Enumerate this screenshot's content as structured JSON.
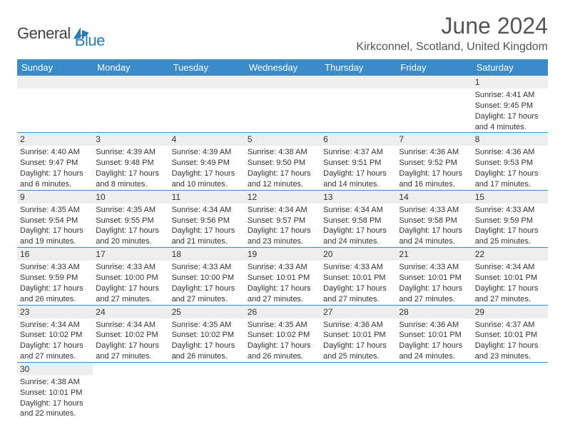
{
  "logo": {
    "text_general": "General",
    "text_blue": "Blue"
  },
  "title": "June 2024",
  "location": "Kirkconnel, Scotland, United Kingdom",
  "colors": {
    "header_bg": "#3b8bc9",
    "header_text": "#ffffff",
    "daynum_bg": "#eeeeee",
    "border": "#3b8bc9",
    "text": "#333333",
    "title_text": "#555555",
    "logo_blue": "#2a7ab8"
  },
  "weekday_labels": [
    "Sunday",
    "Monday",
    "Tuesday",
    "Wednesday",
    "Thursday",
    "Friday",
    "Saturday"
  ],
  "weeks": [
    [
      null,
      null,
      null,
      null,
      null,
      null,
      {
        "n": "1",
        "sr": "4:41 AM",
        "ss": "9:45 PM",
        "dh": "17",
        "dm": "4"
      }
    ],
    [
      {
        "n": "2",
        "sr": "4:40 AM",
        "ss": "9:47 PM",
        "dh": "17",
        "dm": "6"
      },
      {
        "n": "3",
        "sr": "4:39 AM",
        "ss": "9:48 PM",
        "dh": "17",
        "dm": "8"
      },
      {
        "n": "4",
        "sr": "4:39 AM",
        "ss": "9:49 PM",
        "dh": "17",
        "dm": "10"
      },
      {
        "n": "5",
        "sr": "4:38 AM",
        "ss": "9:50 PM",
        "dh": "17",
        "dm": "12"
      },
      {
        "n": "6",
        "sr": "4:37 AM",
        "ss": "9:51 PM",
        "dh": "17",
        "dm": "14"
      },
      {
        "n": "7",
        "sr": "4:36 AM",
        "ss": "9:52 PM",
        "dh": "17",
        "dm": "16"
      },
      {
        "n": "8",
        "sr": "4:36 AM",
        "ss": "9:53 PM",
        "dh": "17",
        "dm": "17"
      }
    ],
    [
      {
        "n": "9",
        "sr": "4:35 AM",
        "ss": "9:54 PM",
        "dh": "17",
        "dm": "19"
      },
      {
        "n": "10",
        "sr": "4:35 AM",
        "ss": "9:55 PM",
        "dh": "17",
        "dm": "20"
      },
      {
        "n": "11",
        "sr": "4:34 AM",
        "ss": "9:56 PM",
        "dh": "17",
        "dm": "21"
      },
      {
        "n": "12",
        "sr": "4:34 AM",
        "ss": "9:57 PM",
        "dh": "17",
        "dm": "23"
      },
      {
        "n": "13",
        "sr": "4:34 AM",
        "ss": "9:58 PM",
        "dh": "17",
        "dm": "24"
      },
      {
        "n": "14",
        "sr": "4:33 AM",
        "ss": "9:58 PM",
        "dh": "17",
        "dm": "24"
      },
      {
        "n": "15",
        "sr": "4:33 AM",
        "ss": "9:59 PM",
        "dh": "17",
        "dm": "25"
      }
    ],
    [
      {
        "n": "16",
        "sr": "4:33 AM",
        "ss": "9:59 PM",
        "dh": "17",
        "dm": "26"
      },
      {
        "n": "17",
        "sr": "4:33 AM",
        "ss": "10:00 PM",
        "dh": "17",
        "dm": "27"
      },
      {
        "n": "18",
        "sr": "4:33 AM",
        "ss": "10:00 PM",
        "dh": "17",
        "dm": "27"
      },
      {
        "n": "19",
        "sr": "4:33 AM",
        "ss": "10:01 PM",
        "dh": "17",
        "dm": "27"
      },
      {
        "n": "20",
        "sr": "4:33 AM",
        "ss": "10:01 PM",
        "dh": "17",
        "dm": "27"
      },
      {
        "n": "21",
        "sr": "4:33 AM",
        "ss": "10:01 PM",
        "dh": "17",
        "dm": "27"
      },
      {
        "n": "22",
        "sr": "4:34 AM",
        "ss": "10:01 PM",
        "dh": "17",
        "dm": "27"
      }
    ],
    [
      {
        "n": "23",
        "sr": "4:34 AM",
        "ss": "10:02 PM",
        "dh": "17",
        "dm": "27"
      },
      {
        "n": "24",
        "sr": "4:34 AM",
        "ss": "10:02 PM",
        "dh": "17",
        "dm": "27"
      },
      {
        "n": "25",
        "sr": "4:35 AM",
        "ss": "10:02 PM",
        "dh": "17",
        "dm": "26"
      },
      {
        "n": "26",
        "sr": "4:35 AM",
        "ss": "10:02 PM",
        "dh": "17",
        "dm": "26"
      },
      {
        "n": "27",
        "sr": "4:36 AM",
        "ss": "10:01 PM",
        "dh": "17",
        "dm": "25"
      },
      {
        "n": "28",
        "sr": "4:36 AM",
        "ss": "10:01 PM",
        "dh": "17",
        "dm": "24"
      },
      {
        "n": "29",
        "sr": "4:37 AM",
        "ss": "10:01 PM",
        "dh": "17",
        "dm": "23"
      }
    ],
    [
      {
        "n": "30",
        "sr": "4:38 AM",
        "ss": "10:01 PM",
        "dh": "17",
        "dm": "22"
      },
      null,
      null,
      null,
      null,
      null,
      null
    ]
  ],
  "labels": {
    "sunrise_prefix": "Sunrise: ",
    "sunset_prefix": "Sunset: ",
    "daylight_prefix": "Daylight: ",
    "hours_word": " hours",
    "and_word": "and ",
    "minutes_word": " minutes."
  }
}
